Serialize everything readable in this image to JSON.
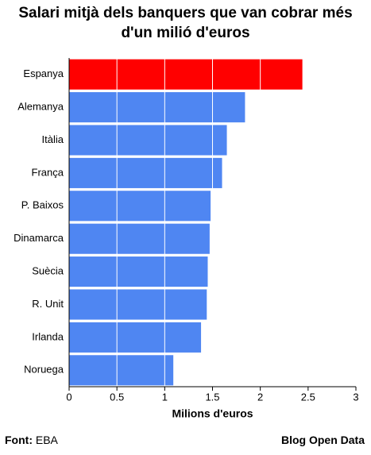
{
  "chart_data": {
    "type": "hbar",
    "title": "Salari mitjà dels banquers que van cobrar més d'un milió d'euros",
    "categories": [
      "Espanya",
      "Alemanya",
      "Itàlia",
      "França",
      "P. Baixos",
      "Dinamarca",
      "Suècia",
      "R. Unit",
      "Irlanda",
      "Noruega"
    ],
    "values": [
      2.44,
      1.84,
      1.65,
      1.6,
      1.48,
      1.47,
      1.45,
      1.44,
      1.38,
      1.09
    ],
    "colors": [
      "#ff0000",
      "#4f86f2",
      "#4f86f2",
      "#4f86f2",
      "#4f86f2",
      "#4f86f2",
      "#4f86f2",
      "#4f86f2",
      "#4f86f2",
      "#4f86f2"
    ],
    "xlabel": "Milions d'euros",
    "xlim": [
      0,
      3
    ],
    "xticks": [
      0,
      0.5,
      1,
      1.5,
      2,
      2.5,
      3
    ],
    "grid": true,
    "source_label": "Font:",
    "source": "EBA",
    "credit": "Blog Open Data"
  }
}
